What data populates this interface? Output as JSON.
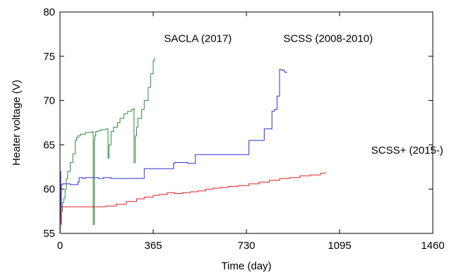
{
  "chart_data": {
    "type": "line",
    "xlabel": "Time (day)",
    "ylabel": "Heater voltage (V)",
    "xlim": [
      0,
      1460
    ],
    "ylim": [
      55,
      80
    ],
    "xticks": [
      0,
      365,
      730,
      1095,
      1460
    ],
    "yticks": [
      55,
      60,
      65,
      70,
      75,
      80
    ],
    "grid": false,
    "annotations": [
      {
        "text": "SACLA (2017)",
        "x": 540,
        "y": 76.6
      },
      {
        "text": "SCSS (2008-2010)",
        "x": 1050,
        "y": 76.6
      },
      {
        "text": "SCSS+ (2015-)",
        "x": 1360,
        "y": 64.0
      }
    ],
    "series": [
      {
        "name": "SACLA (2017)",
        "color": "#2e8b3a",
        "x": [
          0,
          2,
          5,
          10,
          15,
          20,
          25,
          25,
          30,
          40,
          50,
          60,
          65,
          70,
          80,
          100,
          125,
          130,
          134,
          134,
          136,
          140,
          145,
          150,
          160,
          180,
          188,
          188,
          192,
          200,
          210,
          225,
          235,
          250,
          265,
          280,
          290,
          290,
          295,
          300,
          305,
          320,
          330,
          345,
          355,
          365,
          370
        ],
        "y": [
          55,
          56.5,
          57.5,
          58.5,
          59.0,
          60.0,
          60.5,
          61.2,
          62.0,
          63.0,
          64.0,
          65.5,
          65.8,
          66.0,
          66.2,
          66.4,
          66.5,
          56.0,
          62.0,
          65.5,
          66.0,
          66.5,
          66.5,
          66.6,
          66.7,
          66.8,
          66.8,
          63.5,
          65.0,
          66.5,
          67.0,
          67.5,
          68.0,
          68.5,
          68.8,
          69.0,
          69.2,
          63.0,
          66.0,
          67.0,
          68.0,
          69.0,
          70.0,
          71.5,
          73.0,
          74.5,
          74.8
        ]
      },
      {
        "name": "SCSS (2008-2010)",
        "color": "#3030d0",
        "x": [
          0,
          3,
          5,
          10,
          20,
          30,
          40,
          70,
          75,
          80,
          90,
          100,
          130,
          140,
          150,
          170,
          180,
          200,
          250,
          280,
          290,
          300,
          330,
          350,
          365,
          400,
          430,
          445,
          450,
          470,
          500,
          530,
          545,
          550,
          560,
          580,
          600,
          620,
          640,
          650,
          660,
          680,
          700,
          720,
          740,
          780,
          800,
          810,
          830,
          840,
          850,
          860,
          870,
          880,
          890
        ],
        "y": [
          62,
          56,
          60.5,
          60.6,
          60.6,
          60.6,
          60.5,
          60.8,
          61.3,
          61.3,
          61.2,
          61.3,
          61.3,
          61.3,
          61.2,
          61.3,
          61.3,
          61.2,
          61.2,
          61.2,
          61.2,
          61.2,
          62.3,
          62.3,
          62.3,
          62.3,
          62.3,
          62.9,
          63.0,
          63.0,
          62.9,
          63.9,
          63.9,
          63.9,
          63.9,
          63.9,
          63.9,
          63.9,
          63.9,
          63.9,
          63.9,
          63.9,
          63.9,
          63.9,
          65.5,
          65.5,
          66.8,
          66.8,
          68.8,
          69.0,
          70.5,
          73.5,
          73.4,
          73.2,
          73.2
        ]
      },
      {
        "name": "SCSS+ (2015-)",
        "color": "#e02020",
        "x": [
          0,
          5,
          10,
          20,
          30,
          60,
          80,
          100,
          140,
          180,
          220,
          260,
          300,
          330,
          365,
          390,
          420,
          450,
          480,
          510,
          540,
          570,
          600,
          630,
          660,
          700,
          740,
          780,
          820,
          860,
          900,
          940,
          980,
          1020,
          1040
        ],
        "y": [
          56,
          58.0,
          58.0,
          58.0,
          58.0,
          58.0,
          58.0,
          58.0,
          58.0,
          58.1,
          58.3,
          58.6,
          58.9,
          59.1,
          59.3,
          59.4,
          59.6,
          59.5,
          59.6,
          59.7,
          59.8,
          60.0,
          60.1,
          60.2,
          60.3,
          60.4,
          60.6,
          60.8,
          61.0,
          61.2,
          61.3,
          61.5,
          61.6,
          61.8,
          61.9
        ]
      }
    ]
  }
}
